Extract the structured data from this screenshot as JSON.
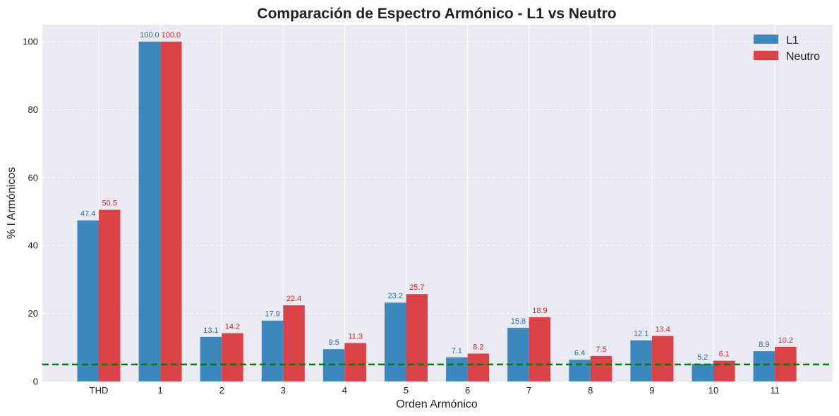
{
  "chart_data": {
    "type": "bar",
    "title": "Comparación de Espectro Armónico - L1 vs Neutro",
    "xlabel": "Orden Armónico",
    "ylabel": "% I Armónicos",
    "categories": [
      "THD",
      "1",
      "2",
      "3",
      "4",
      "5",
      "6",
      "7",
      "8",
      "9",
      "10",
      "11"
    ],
    "series": [
      {
        "name": "L1",
        "color": "#3d87bf",
        "label_color": "#1f6fb4",
        "values": [
          47.4,
          100.0,
          13.1,
          17.9,
          9.5,
          23.2,
          7.1,
          15.8,
          6.4,
          12.1,
          5.2,
          8.9
        ],
        "labels": [
          "47.4",
          "100.0",
          "13.1",
          "17.9",
          "9.5",
          "23.2",
          "7.1",
          "15.8",
          "6.4",
          "12.1",
          "5.2",
          "8.9"
        ]
      },
      {
        "name": "Neutro",
        "color": "#d94348",
        "label_color": "#d62728",
        "values": [
          50.5,
          100.0,
          14.2,
          22.4,
          11.3,
          25.7,
          8.2,
          18.9,
          7.5,
          13.4,
          6.1,
          10.2
        ],
        "labels": [
          "50.5",
          "100.0",
          "14.2",
          "22.4",
          "11.3",
          "25.7",
          "8.2",
          "18.9",
          "7.5",
          "13.4",
          "6.1",
          "10.2"
        ]
      }
    ],
    "ylim": [
      0,
      105
    ],
    "yticks": [
      0,
      20,
      40,
      60,
      80,
      100
    ],
    "ytick_labels": [
      "0",
      "20",
      "40",
      "60",
      "80",
      "100"
    ],
    "reference_line": {
      "y": 5,
      "color": "#008000",
      "style": "dashed"
    },
    "grid": true,
    "legend_position": "top-right",
    "background": "#eaeaf2"
  }
}
